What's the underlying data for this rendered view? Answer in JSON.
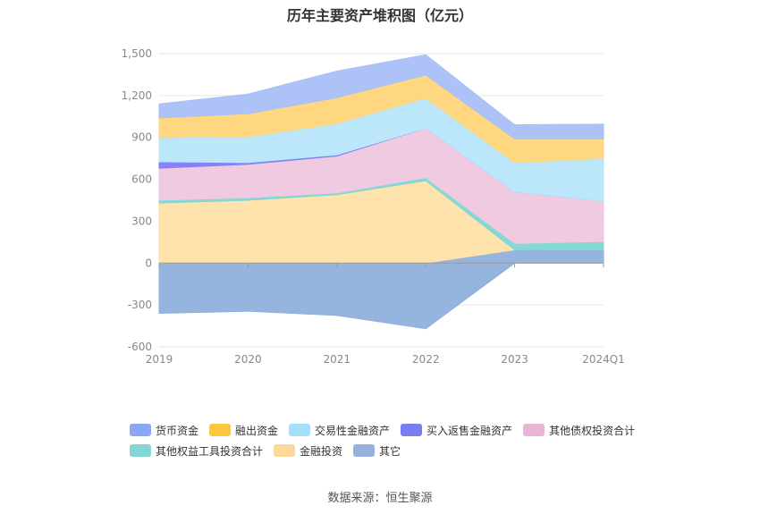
{
  "chart_data": {
    "type": "area",
    "stacked": true,
    "title": "历年主要资产堆积图（亿元）",
    "categories": [
      "2019",
      "2020",
      "2021",
      "2022",
      "2023",
      "2024Q1"
    ],
    "yticks": [
      "1,500",
      "1,200",
      "900",
      "600",
      "300",
      "0",
      "-300",
      "-600"
    ],
    "ylim": [
      -600,
      1500
    ],
    "series": [
      {
        "name": "其它",
        "color": "#8fb0dc",
        "values": [
          -360,
          -345,
          -375,
          -470,
          95,
          95
        ]
      },
      {
        "name": "金融投资",
        "color": "#ffe1a8",
        "values": [
          430,
          450,
          490,
          590,
          0,
          0
        ]
      },
      {
        "name": "其他权益工具投资合计",
        "color": "#7fd6d3",
        "values": [
          20,
          18,
          12,
          22,
          45,
          60
        ]
      },
      {
        "name": "其他债权投资合计",
        "color": "#eec7df",
        "values": [
          230,
          240,
          265,
          355,
          370,
          290
        ]
      },
      {
        "name": "买入返售金融资产",
        "color": "#7c7ef5",
        "values": [
          45,
          12,
          8,
          0,
          0,
          0
        ]
      },
      {
        "name": "交易性金融资产",
        "color": "#b8e6fb",
        "values": [
          175,
          185,
          225,
          215,
          210,
          305
        ]
      },
      {
        "name": "融出资金",
        "color": "#ffd57a",
        "values": [
          140,
          165,
          185,
          165,
          170,
          140
        ]
      },
      {
        "name": "货币资金",
        "color": "#a9bff7",
        "values": [
          100,
          140,
          190,
          145,
          100,
          105
        ]
      }
    ]
  },
  "legend": [
    {
      "label": "货币资金",
      "color": "#8ca6f6"
    },
    {
      "label": "融出资金",
      "color": "#f9c740"
    },
    {
      "label": "交易性金融资产",
      "color": "#a5dff9"
    },
    {
      "label": "买入返售金融资产",
      "color": "#7a7cf2"
    },
    {
      "label": "其他债权投资合计",
      "color": "#e9b3d6"
    },
    {
      "label": "其他权益工具投资合计",
      "color": "#84d7d4"
    },
    {
      "label": "金融投资",
      "color": "#fdd89a"
    },
    {
      "label": "其它",
      "color": "#95b1dc"
    }
  ],
  "source": "数据来源：恒生聚源"
}
